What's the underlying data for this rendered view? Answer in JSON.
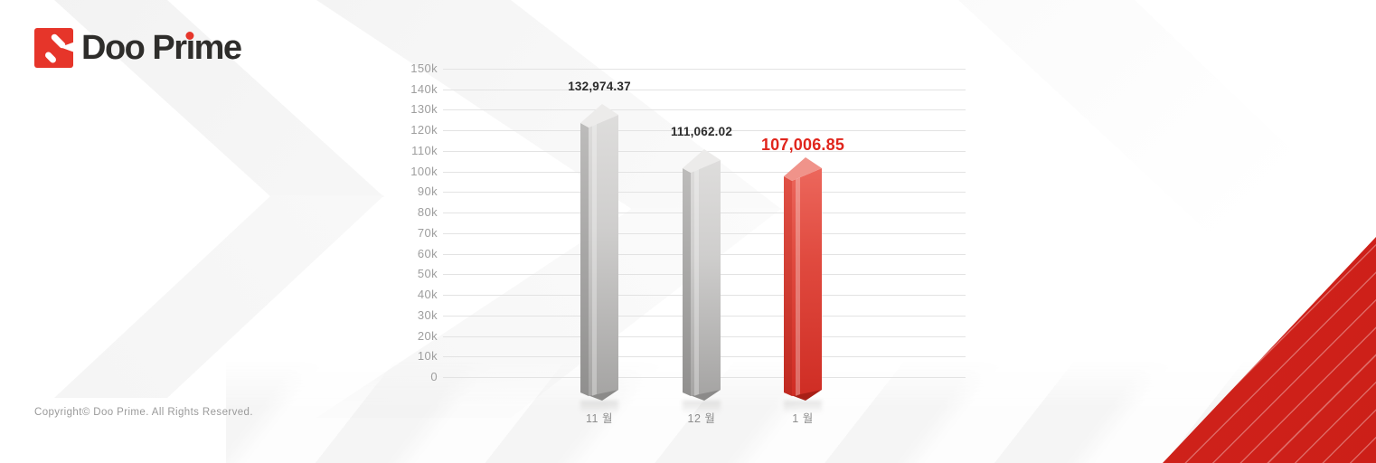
{
  "brand": {
    "prefix": "Doo Pr",
    "i_char": "ı",
    "suffix": "me"
  },
  "footer": {
    "copyright": "Copyright© Doo Prime. All Rights Reserved."
  },
  "colors": {
    "brand_red": "#e6352a",
    "highlight_red": "#e0251c",
    "triangle_red": "#d6231c",
    "grid_line": "#e3e3e3",
    "axis_text": "#9e9e9e",
    "label_text": "#2b2b2b",
    "bar_gray_front": "#c9c8c7",
    "bar_red_front": "#e04437"
  },
  "chart_data": {
    "type": "bar",
    "title": "",
    "xlabel": "",
    "ylabel": "",
    "categories": [
      "11 월",
      "12 월",
      "1 월"
    ],
    "values": [
      132974.37,
      111062.02,
      107006.85
    ],
    "value_labels": [
      "132,974.37",
      "111,062.02",
      "107,006.85"
    ],
    "highlight_index": 2,
    "ylim": [
      0,
      150000
    ],
    "ytick_interval": 10000,
    "ytick_labels": [
      "0",
      "10k",
      "20k",
      "30k",
      "40k",
      "50k",
      "60k",
      "70k",
      "80k",
      "90k",
      "100k",
      "110k",
      "120k",
      "130k",
      "140k",
      "150k"
    ],
    "grid": true,
    "legend": false,
    "bar_style": "3d-column"
  }
}
